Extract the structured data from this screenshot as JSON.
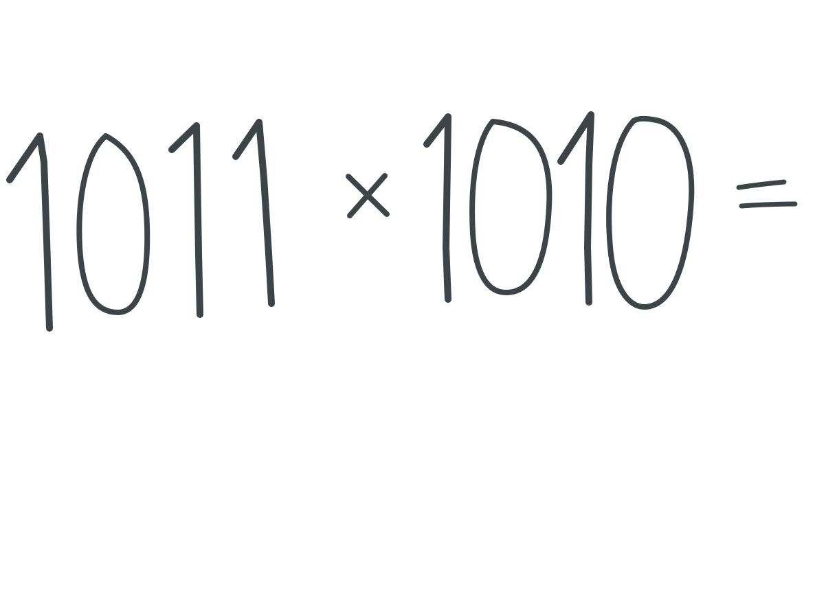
{
  "expression": {
    "left_operand": "1011",
    "operator": "×",
    "right_operand": "1010",
    "equals": "="
  },
  "ink_color": "#3d4447",
  "background_color": "#ffffff"
}
